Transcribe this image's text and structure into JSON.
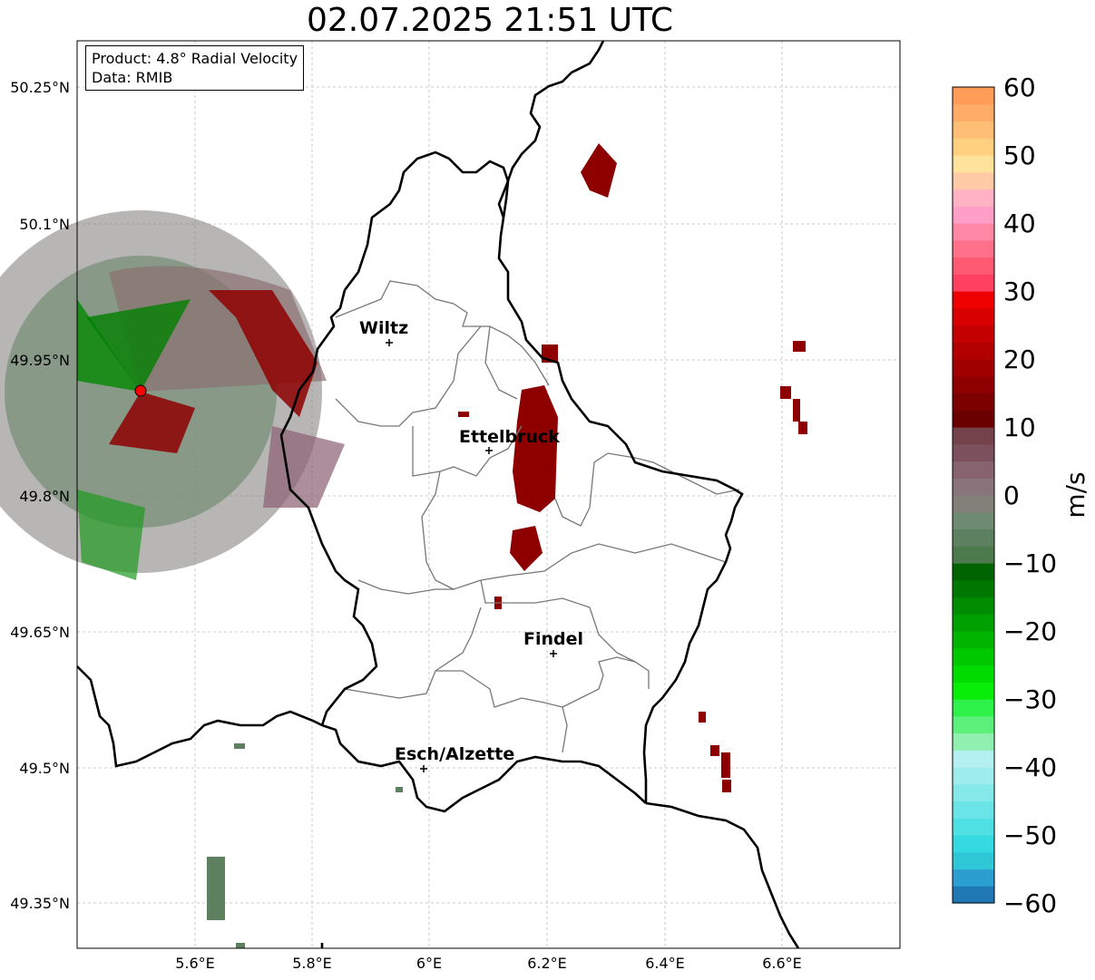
{
  "title": "02.07.2025 21:51 UTC",
  "info": {
    "product": "Product: 4.8° Radial Velocity",
    "data": "Data: RMIB"
  },
  "colorbar": {
    "unit": "m/s",
    "min": -60,
    "max": 60,
    "ticks": [
      "60",
      "50",
      "40",
      "30",
      "20",
      "10",
      "0",
      "−10",
      "−20",
      "−30",
      "−40",
      "−50",
      "−60"
    ],
    "colors": [
      "#1f78b4",
      "#2a9fd0",
      "#2ec7d8",
      "#35d9e0",
      "#4fe0e3",
      "#6ae4e6",
      "#85e8e9",
      "#9feced",
      "#b4f0f0",
      "#8ff0b0",
      "#5df07a",
      "#2ef24a",
      "#08ee08",
      "#00dc00",
      "#00c800",
      "#00b400",
      "#00a000",
      "#008c00",
      "#007800",
      "#006400",
      "#4d7a4d",
      "#5c8060",
      "#6e8a70",
      "#828078",
      "#8a747b",
      "#86636e",
      "#7d505d",
      "#74424a",
      "#6a0000",
      "#7c0000",
      "#8e0000",
      "#a00000",
      "#b20000",
      "#c40000",
      "#d80000",
      "#ee0000",
      "#ff4060",
      "#ff5a74",
      "#ff708a",
      "#ff88a6",
      "#ff9ec6",
      "#ffb2c4",
      "#ffcaa6",
      "#ffe29c",
      "#ffd080",
      "#ffbe76",
      "#ffac68",
      "#ff9c58"
    ]
  },
  "axes": {
    "lon_ticks": [
      "5.6°E",
      "5.8°E",
      "6°E",
      "6.2°E",
      "6.4°E",
      "6.6°E"
    ],
    "lat_ticks": [
      "50.25°N",
      "50.1°N",
      "49.95°N",
      "49.8°N",
      "49.65°N",
      "49.5°N",
      "49.35°N"
    ]
  },
  "cities": [
    {
      "name": "Wiltz"
    },
    {
      "name": "Ettelbruck"
    },
    {
      "name": "Findel"
    },
    {
      "name": "Esch/Alzette"
    }
  ],
  "radar_site": {
    "color": "#ff0000"
  }
}
